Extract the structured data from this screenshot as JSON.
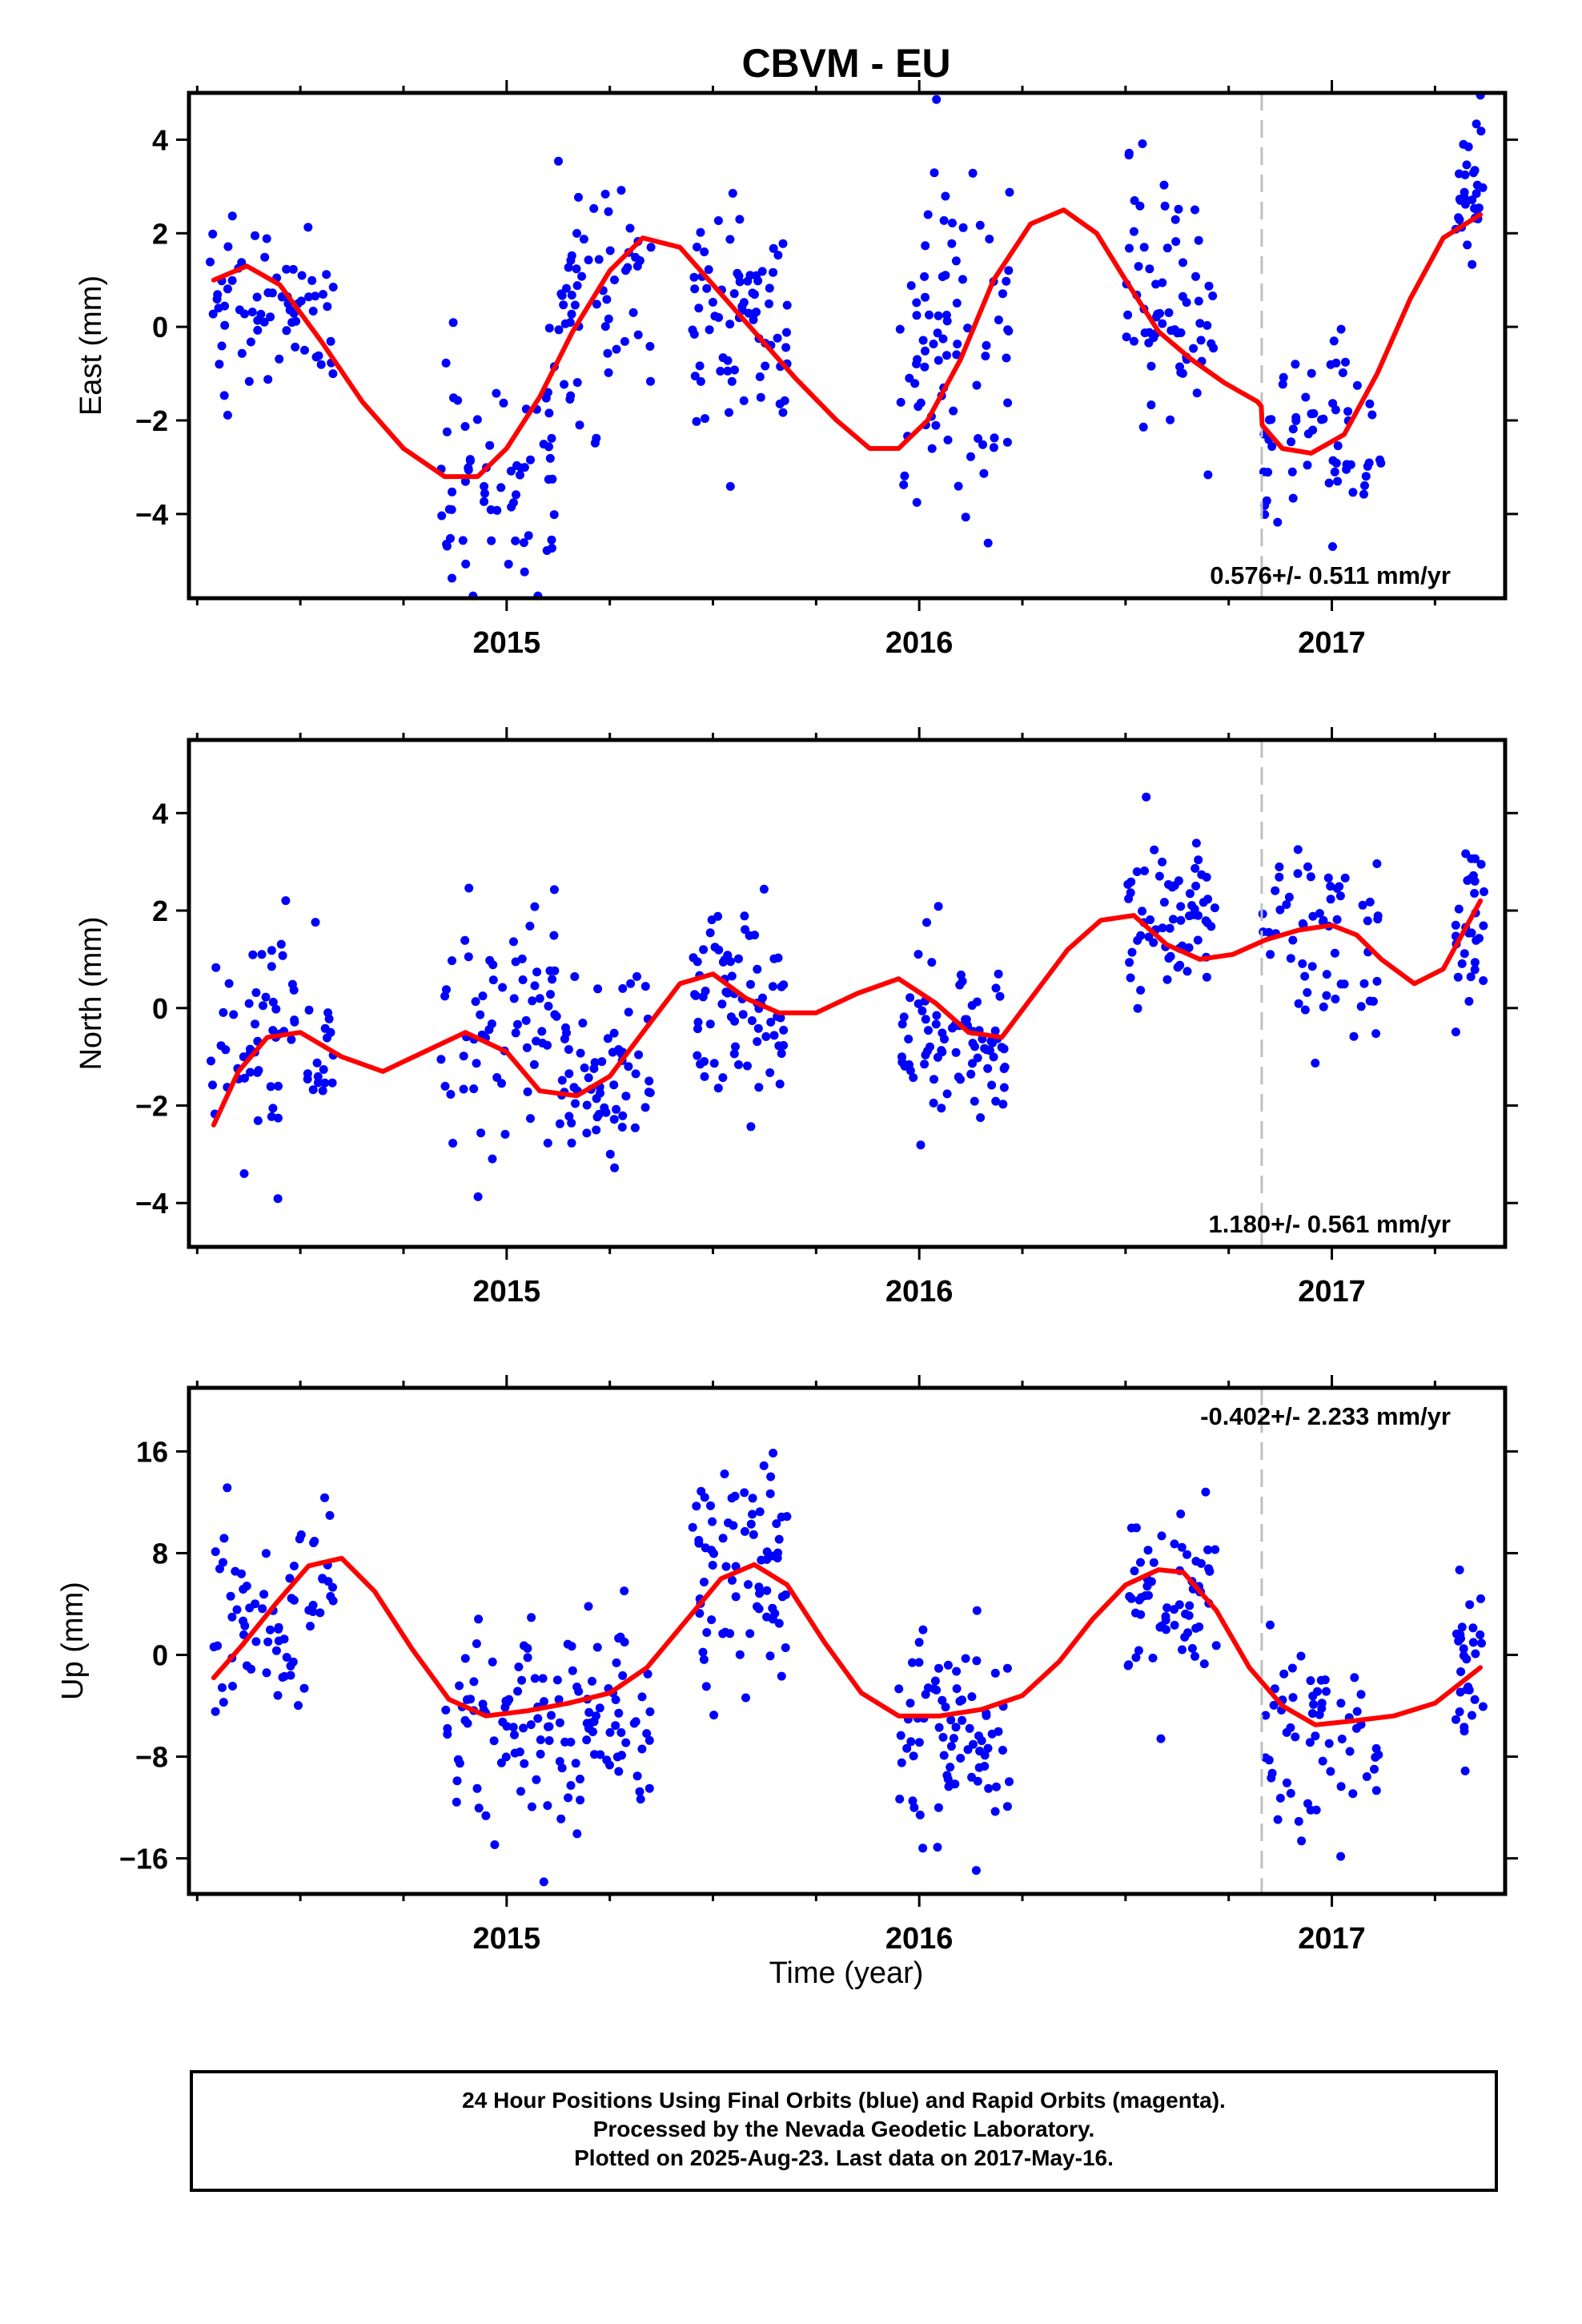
{
  "title": "CBVM - EU",
  "xlabel": "Time (year)",
  "footer": {
    "line1": "24 Hour Positions Using Final Orbits (blue) and Rapid Orbits (magenta).",
    "line2": "Processed by the Nevada Geodetic Laboratory.",
    "line3": "Plotted on 2025-Aug-23. Last data on 2017-May-16."
  },
  "colors": {
    "points": "#0000ff",
    "model": "#ff0000",
    "equipment_change": "#bfbfbf"
  },
  "chart_data": [
    {
      "type": "scatter",
      "component": "East",
      "ylabel": "East (mm)",
      "rate": "0.576+/- 0.511 mm/yr",
      "rate_position": "bottom-right",
      "xlim": [
        2014.23,
        2017.42
      ],
      "ylim": [
        -5.8,
        5.0
      ],
      "yticks": [
        -4,
        -2,
        0,
        2,
        4
      ],
      "xticks": [
        2015,
        2016,
        2017
      ],
      "equipment_change_x": 2016.83,
      "model_line": {
        "x": [
          2014.29,
          2014.37,
          2014.45,
          2014.55,
          2014.65,
          2014.75,
          2014.85,
          2014.93,
          2015.0,
          2015.08,
          2015.16,
          2015.25,
          2015.33,
          2015.42,
          2015.5,
          2015.6,
          2015.7,
          2015.8,
          2015.88,
          2015.95,
          2016.02,
          2016.1,
          2016.18,
          2016.27,
          2016.35,
          2016.43,
          2016.5,
          2016.58,
          2016.66,
          2016.74,
          2016.82,
          2016.829,
          2016.831,
          2016.88,
          2016.95,
          2017.03,
          2017.11,
          2017.19,
          2017.27,
          2017.36
        ],
        "y": [
          1.0,
          1.3,
          0.9,
          -0.3,
          -1.6,
          -2.6,
          -3.2,
          -3.2,
          -2.6,
          -1.5,
          -0.1,
          1.2,
          1.9,
          1.7,
          0.9,
          -0.1,
          -1.1,
          -2.0,
          -2.6,
          -2.6,
          -2.0,
          -0.7,
          1.0,
          2.2,
          2.5,
          2.0,
          1.0,
          -0.1,
          -0.7,
          -1.2,
          -1.6,
          -1.7,
          -2.1,
          -2.6,
          -2.7,
          -2.3,
          -1.0,
          0.6,
          1.9,
          2.4
        ]
      },
      "clusters": [
        {
          "x0": 2014.28,
          "x1": 2014.58,
          "mean": 0.5,
          "sd": 0.95,
          "n": 70
        },
        {
          "x0": 2014.84,
          "x1": 2015.12,
          "mean": -3.2,
          "sd": 1.0,
          "n": 65
        },
        {
          "x0": 2015.1,
          "x1": 2015.35,
          "mean": 0.5,
          "sd": 1.4,
          "n": 60
        },
        {
          "x0": 2015.45,
          "x1": 2015.68,
          "mean": 0.3,
          "sd": 1.1,
          "n": 75
        },
        {
          "x0": 2015.95,
          "x1": 2016.22,
          "mean": -0.5,
          "sd": 1.8,
          "n": 80
        },
        {
          "x0": 2016.5,
          "x1": 2016.72,
          "mean": 0.7,
          "sd": 1.4,
          "n": 65
        },
        {
          "x0": 2016.83,
          "x1": 2017.12,
          "mean": -2.2,
          "sd": 0.9,
          "n": 60
        },
        {
          "x0": 2017.3,
          "x1": 2017.37,
          "mean": 2.8,
          "sd": 0.9,
          "n": 30
        }
      ]
    },
    {
      "type": "scatter",
      "component": "North",
      "ylabel": "North (mm)",
      "rate": "1.180+/- 0.561 mm/yr",
      "rate_position": "bottom-right",
      "xlim": [
        2014.23,
        2017.42
      ],
      "ylim": [
        -4.9,
        5.5
      ],
      "yticks": [
        -4,
        -2,
        0,
        2,
        4
      ],
      "xticks": [
        2015,
        2016,
        2017
      ],
      "equipment_change_x": 2016.83,
      "model_line": {
        "x": [
          2014.29,
          2014.35,
          2014.42,
          2014.5,
          2014.6,
          2014.7,
          2014.8,
          2014.9,
          2015.0,
          2015.08,
          2015.17,
          2015.25,
          2015.33,
          2015.42,
          2015.5,
          2015.58,
          2015.66,
          2015.75,
          2015.85,
          2015.95,
          2016.04,
          2016.12,
          2016.2,
          2016.28,
          2016.36,
          2016.44,
          2016.52,
          2016.6,
          2016.68,
          2016.76,
          2016.84,
          2016.92,
          2017.0,
          2017.06,
          2017.12,
          2017.2,
          2017.27,
          2017.36
        ],
        "y": [
          -2.4,
          -1.3,
          -0.6,
          -0.5,
          -1.0,
          -1.3,
          -0.9,
          -0.5,
          -0.9,
          -1.7,
          -1.8,
          -1.4,
          -0.5,
          0.5,
          0.7,
          0.2,
          -0.1,
          -0.1,
          0.3,
          0.6,
          0.1,
          -0.5,
          -0.6,
          0.3,
          1.2,
          1.8,
          1.9,
          1.3,
          1.0,
          1.1,
          1.4,
          1.6,
          1.7,
          1.5,
          1.0,
          0.5,
          0.8,
          2.2
        ]
      },
      "clusters": [
        {
          "x0": 2014.28,
          "x1": 2014.58,
          "mean": -0.6,
          "sd": 1.1,
          "n": 70
        },
        {
          "x0": 2014.84,
          "x1": 2015.12,
          "mean": -0.3,
          "sd": 1.3,
          "n": 65
        },
        {
          "x0": 2015.12,
          "x1": 2015.35,
          "mean": -1.4,
          "sd": 1.2,
          "n": 65
        },
        {
          "x0": 2015.45,
          "x1": 2015.68,
          "mean": 0.0,
          "sd": 1.1,
          "n": 75
        },
        {
          "x0": 2015.95,
          "x1": 2016.22,
          "mean": -0.6,
          "sd": 1.0,
          "n": 80
        },
        {
          "x0": 2016.5,
          "x1": 2016.72,
          "mean": 2.1,
          "sd": 0.9,
          "n": 65
        },
        {
          "x0": 2016.83,
          "x1": 2017.12,
          "mean": 1.3,
          "sd": 1.0,
          "n": 60
        },
        {
          "x0": 2017.3,
          "x1": 2017.37,
          "mean": 1.6,
          "sd": 1.1,
          "n": 30
        }
      ]
    },
    {
      "type": "scatter",
      "component": "Up",
      "ylabel": "Up (mm)",
      "rate": "-0.402+/- 2.233 mm/yr",
      "rate_position": "top-right",
      "xlim": [
        2014.23,
        2017.42
      ],
      "ylim": [
        -18.8,
        21.0
      ],
      "yticks": [
        -16,
        -8,
        0,
        8,
        16
      ],
      "xticks": [
        2015,
        2016,
        2017
      ],
      "equipment_change_x": 2016.83,
      "model_line": {
        "x": [
          2014.29,
          2014.36,
          2014.44,
          2014.52,
          2014.6,
          2014.68,
          2014.77,
          2014.86,
          2014.95,
          2015.05,
          2015.15,
          2015.25,
          2015.34,
          2015.43,
          2015.52,
          2015.6,
          2015.68,
          2015.77,
          2015.86,
          2015.95,
          2016.05,
          2016.15,
          2016.25,
          2016.34,
          2016.42,
          2016.5,
          2016.58,
          2016.64,
          2016.72,
          2016.8,
          2016.88,
          2016.96,
          2017.05,
          2017.15,
          2017.25,
          2017.36
        ],
        "y": [
          -1.8,
          0.8,
          4.0,
          7.0,
          7.6,
          5.0,
          0.5,
          -3.5,
          -4.8,
          -4.4,
          -3.8,
          -3.0,
          -1.0,
          2.5,
          6.0,
          7.1,
          5.5,
          1.0,
          -3.0,
          -4.8,
          -4.8,
          -4.3,
          -3.2,
          -0.5,
          2.8,
          5.5,
          6.7,
          6.5,
          3.5,
          -1.0,
          -4.0,
          -5.5,
          -5.2,
          -4.8,
          -3.8,
          -1.0
        ]
      },
      "clusters": [
        {
          "x0": 2014.28,
          "x1": 2014.58,
          "mean": 3.5,
          "sd": 4.0,
          "n": 70
        },
        {
          "x0": 2014.84,
          "x1": 2015.12,
          "mean": -5.0,
          "sd": 4.5,
          "n": 65
        },
        {
          "x0": 2015.12,
          "x1": 2015.35,
          "mean": -5.5,
          "sd": 4.0,
          "n": 65
        },
        {
          "x0": 2015.45,
          "x1": 2015.68,
          "mean": 6.5,
          "sd": 4.5,
          "n": 75
        },
        {
          "x0": 2015.95,
          "x1": 2016.22,
          "mean": -6.0,
          "sd": 4.0,
          "n": 80
        },
        {
          "x0": 2016.5,
          "x1": 2016.72,
          "mean": 5.0,
          "sd": 3.5,
          "n": 65
        },
        {
          "x0": 2016.83,
          "x1": 2017.12,
          "mean": -6.5,
          "sd": 4.0,
          "n": 60
        },
        {
          "x0": 2017.3,
          "x1": 2017.37,
          "mean": -0.5,
          "sd": 3.5,
          "n": 30
        }
      ]
    }
  ]
}
